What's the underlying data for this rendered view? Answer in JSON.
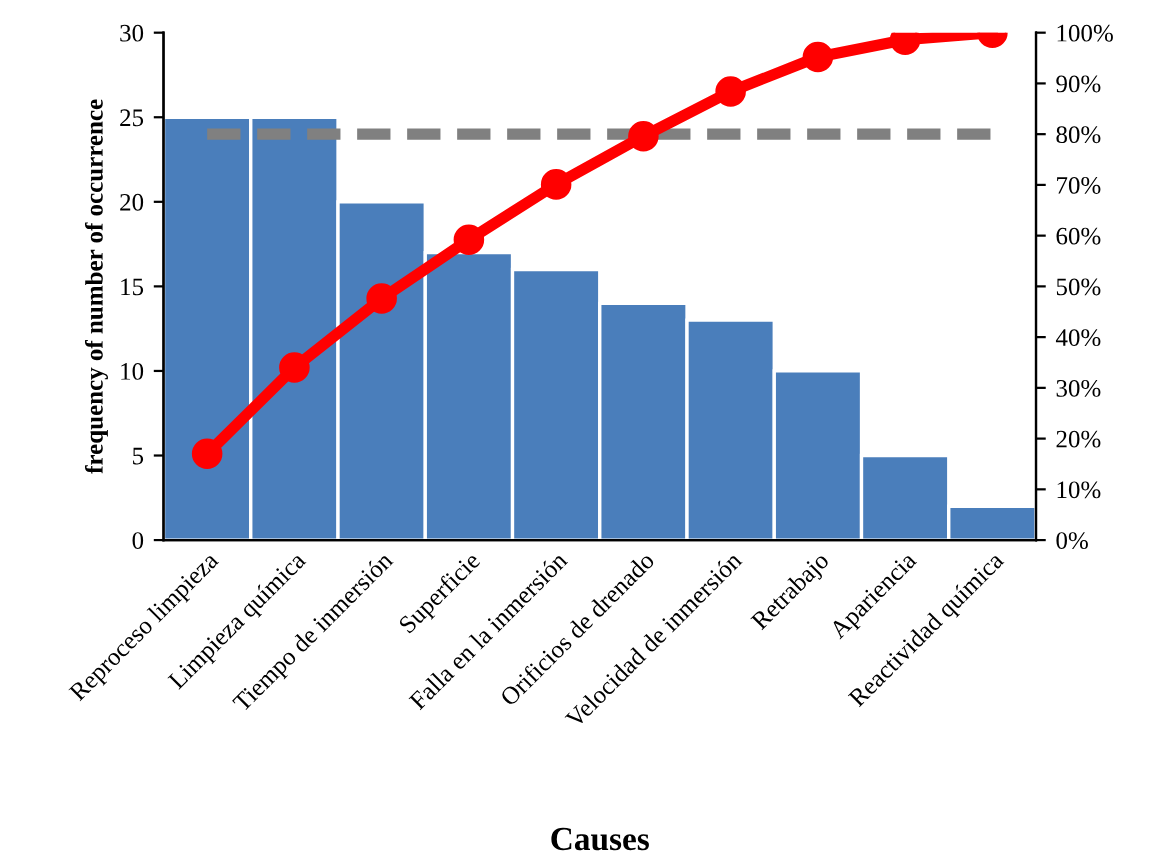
{
  "chart_data": {
    "type": "bar",
    "xlabel": "Causes",
    "ylabel": "frequency of number of occurrence",
    "categories": [
      "Reproceso limpieza",
      "Limpieza química",
      "Tiempo de inmersión",
      "Superficie",
      "Falla en la inmersión",
      "Orificios de drenado",
      "Velocidad de inmersión",
      "Retrabajo",
      "Apariencia",
      "Reactividad química"
    ],
    "series": [
      {
        "color": "#4a7ebb",
        "values": [
          25,
          25,
          20,
          17,
          16,
          14,
          13,
          10,
          5,
          2
        ]
      },
      {
        "type": "line",
        "axis": "y2",
        "color": "#ff0000",
        "marker": "circle",
        "line_style": "solid",
        "values": [
          17.0,
          34.0,
          47.6,
          59.2,
          70.1,
          79.6,
          88.4,
          95.2,
          98.6,
          100
        ]
      }
    ],
    "ylim": [
      0,
      30
    ],
    "yticks": [
      0,
      5,
      10,
      15,
      20,
      25,
      30
    ],
    "y2lim": [
      0,
      100
    ],
    "y2ticks": [
      {
        "value": 0,
        "label": "0%"
      },
      {
        "value": 10,
        "label": "10%"
      },
      {
        "value": 20,
        "label": "20%"
      },
      {
        "value": 30,
        "label": "30%"
      },
      {
        "value": 40,
        "label": "40%"
      },
      {
        "value": 50,
        "label": "50%"
      },
      {
        "value": 60,
        "label": "60%"
      },
      {
        "value": 70,
        "label": "70%"
      },
      {
        "value": 80,
        "label": "80%"
      },
      {
        "value": 90,
        "label": "90%"
      },
      {
        "value": 100,
        "label": "100%"
      }
    ],
    "ref_lines": [
      {
        "axis": "y2",
        "value": 80,
        "color": "#808080",
        "line_style": "dashed"
      }
    ],
    "grid": false
  }
}
